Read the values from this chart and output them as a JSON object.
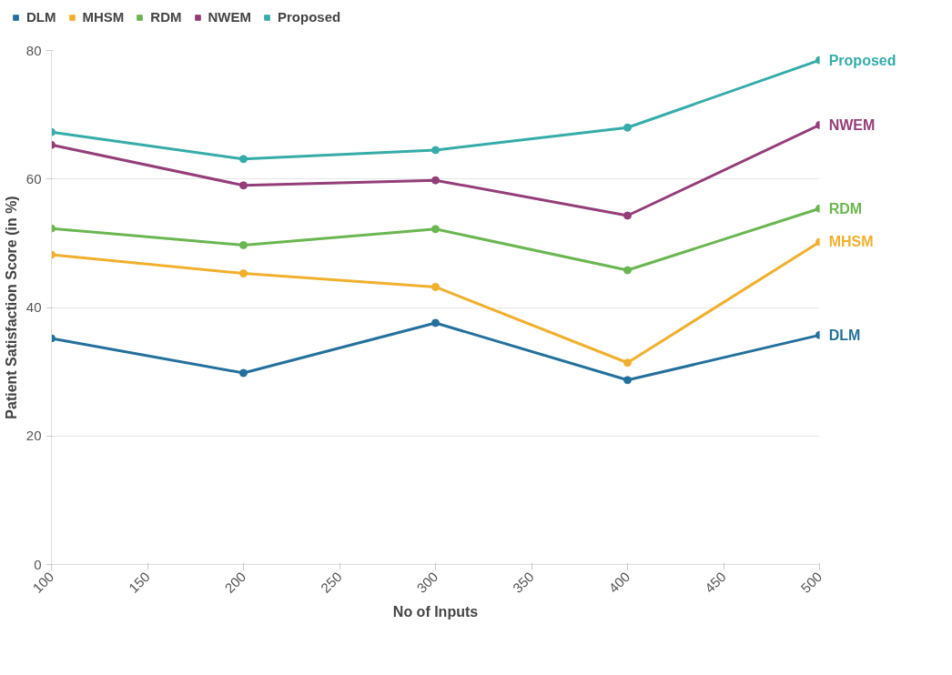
{
  "chart_data": {
    "type": "line",
    "xlabel": "No of Inputs",
    "ylabel": "Patient Satisfaction Score (in %)",
    "x": [
      100,
      200,
      300,
      400,
      500
    ],
    "series": [
      {
        "name": "DLM",
        "color": "#23709c",
        "values": [
          35.2,
          29.8,
          37.6,
          28.7,
          35.7
        ]
      },
      {
        "name": "MHSM",
        "color": "#f0b02e",
        "values": [
          48.2,
          45.3,
          43.2,
          31.4,
          50.2
        ]
      },
      {
        "name": "RDM",
        "color": "#6ab651",
        "values": [
          52.3,
          49.7,
          52.2,
          45.8,
          55.4
        ]
      },
      {
        "name": "NWEM",
        "color": "#933e78",
        "values": [
          65.3,
          59.0,
          59.8,
          54.3,
          68.4
        ]
      },
      {
        "name": "Proposed",
        "color": "#35aca8",
        "values": [
          67.3,
          63.1,
          64.5,
          68.0,
          78.5
        ]
      }
    ],
    "xlim": [
      100,
      500
    ],
    "xticks": [
      100,
      150,
      200,
      250,
      300,
      350,
      400,
      450,
      500
    ],
    "ylim": [
      0,
      80
    ],
    "yticks": [
      0,
      20,
      40,
      60,
      80
    ],
    "grid": "y",
    "legend": "top left",
    "marker": "circle",
    "line_style": "solid"
  }
}
